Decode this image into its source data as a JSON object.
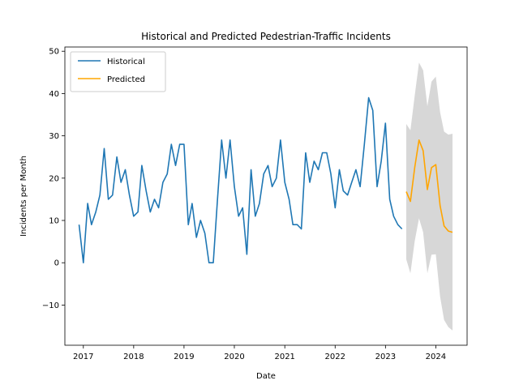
{
  "chart_data": {
    "type": "line",
    "title": "Historical and Predicted Pedestrian-Traffic Incidents",
    "xlabel": "Date",
    "ylabel": "Incidents per Month",
    "xlim": [
      "2016-08-20",
      "2024-08-15"
    ],
    "ylim": [
      -19.5,
      51
    ],
    "x_ticks": [
      "2017-01-01",
      "2018-01-01",
      "2019-01-01",
      "2020-01-01",
      "2021-01-01",
      "2022-01-01",
      "2023-01-01",
      "2024-01-01"
    ],
    "x_tick_labels": [
      "2017",
      "2018",
      "2019",
      "2020",
      "2021",
      "2022",
      "2023",
      "2024"
    ],
    "y_ticks": [
      -10,
      0,
      10,
      20,
      30,
      40,
      50
    ],
    "y_tick_labels": [
      "−10",
      "0",
      "10",
      "20",
      "30",
      "40",
      "50"
    ],
    "grid": false,
    "legend_position": "top-left",
    "series": [
      {
        "name": "Historical",
        "color": "#1f77b4",
        "x": [
          "2016-12",
          "2017-01",
          "2017-02",
          "2017-03",
          "2017-04",
          "2017-05",
          "2017-06",
          "2017-07",
          "2017-08",
          "2017-09",
          "2017-10",
          "2017-11",
          "2017-12",
          "2018-01",
          "2018-02",
          "2018-03",
          "2018-04",
          "2018-05",
          "2018-06",
          "2018-07",
          "2018-08",
          "2018-09",
          "2018-10",
          "2018-11",
          "2018-12",
          "2019-01",
          "2019-02",
          "2019-03",
          "2019-04",
          "2019-05",
          "2019-06",
          "2019-07",
          "2019-08",
          "2019-09",
          "2019-10",
          "2019-11",
          "2019-12",
          "2020-01",
          "2020-02",
          "2020-03",
          "2020-04",
          "2020-05",
          "2020-06",
          "2020-07",
          "2020-08",
          "2020-09",
          "2020-10",
          "2020-11",
          "2020-12",
          "2021-01",
          "2021-02",
          "2021-03",
          "2021-04",
          "2021-05",
          "2021-06",
          "2021-07",
          "2021-08",
          "2021-09",
          "2021-10",
          "2021-11",
          "2021-12",
          "2022-01",
          "2022-02",
          "2022-03",
          "2022-04",
          "2022-05",
          "2022-06",
          "2022-07",
          "2022-08",
          "2022-09",
          "2022-10",
          "2022-11",
          "2022-12",
          "2023-01",
          "2023-02",
          "2023-03",
          "2023-04",
          "2023-05"
        ],
        "values": [
          9,
          0,
          14,
          9,
          12,
          16,
          27,
          15,
          16,
          25,
          19,
          22,
          16,
          11,
          12,
          23,
          17,
          12,
          15,
          13,
          19,
          21,
          28,
          23,
          28,
          28,
          9,
          14,
          6,
          10,
          7,
          0,
          0,
          15,
          29,
          20,
          29,
          18,
          11,
          13,
          2,
          22,
          11,
          14,
          21,
          23,
          18,
          20,
          29,
          19,
          15,
          9,
          9,
          8,
          26,
          19,
          24,
          22,
          26,
          26,
          21,
          13,
          22,
          17,
          16,
          19,
          22,
          18,
          28,
          39,
          36,
          18,
          24,
          33,
          15,
          11,
          9,
          8
        ]
      },
      {
        "name": "Predicted",
        "color": "#ffa500",
        "x": [
          "2023-06",
          "2023-07",
          "2023-08",
          "2023-09",
          "2023-10",
          "2023-11",
          "2023-12",
          "2024-01",
          "2024-02",
          "2024-03",
          "2024-04",
          "2024-05"
        ],
        "values": [
          16.8,
          14.5,
          22.5,
          29,
          26.5,
          17.3,
          22.5,
          23.2,
          13.5,
          8.7,
          7.5,
          7.2
        ]
      }
    ],
    "confidence_band": {
      "color": "#d3d3d3",
      "x": [
        "2023-06",
        "2023-07",
        "2023-08",
        "2023-09",
        "2023-10",
        "2023-11",
        "2023-12",
        "2024-01",
        "2024-02",
        "2024-03",
        "2024-04",
        "2024-05"
      ],
      "upper": [
        32.8,
        31.3,
        39.5,
        47.3,
        45.5,
        37,
        42.8,
        44,
        35.6,
        31,
        30.3,
        30.5
      ],
      "lower": [
        0.8,
        -2.5,
        5.1,
        10.5,
        7.2,
        -2.5,
        1.9,
        2,
        -8,
        -13.5,
        -15.2,
        -16
      ]
    }
  }
}
